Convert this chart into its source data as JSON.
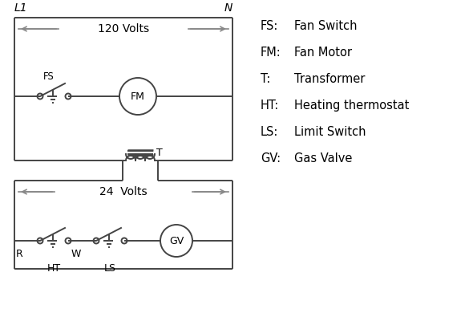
{
  "bg_color": "#ffffff",
  "line_color": "#444444",
  "arrow_color": "#888888",
  "text_color": "#000000",
  "legend": [
    [
      "FS:",
      "Fan Switch"
    ],
    [
      "FM:",
      "Fan Motor"
    ],
    [
      "T:",
      "Transformer"
    ],
    [
      "HT:",
      "Heating thermostat"
    ],
    [
      "LS:",
      "Limit Switch"
    ],
    [
      "GV:",
      "Gas Valve"
    ]
  ],
  "figsize": [
    5.9,
    4.0
  ],
  "dpi": 100
}
